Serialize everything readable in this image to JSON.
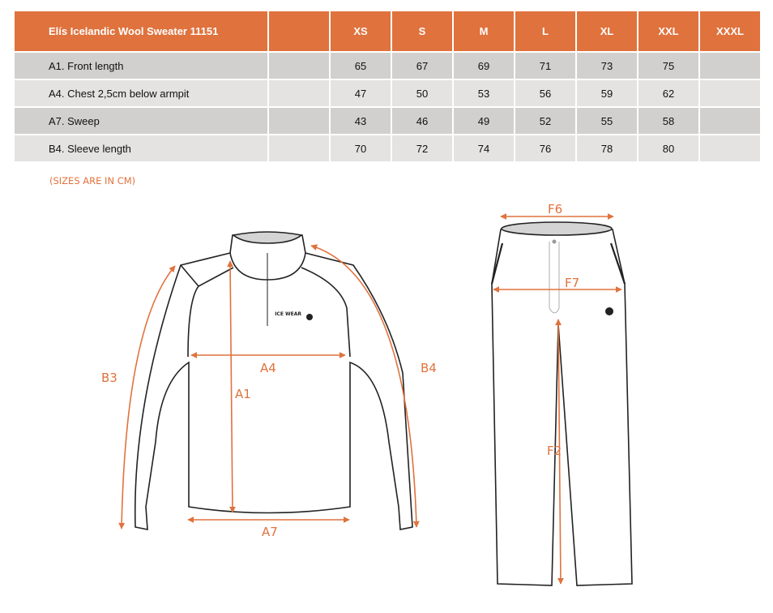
{
  "table": {
    "title": "Elís Icelandic Wool Sweater 11151",
    "sizes": [
      "XS",
      "S",
      "M",
      "L",
      "XL",
      "XXL",
      "XXXL"
    ],
    "rows": [
      {
        "label": "A1. Front length",
        "values": [
          "65",
          "67",
          "69",
          "71",
          "73",
          "75",
          ""
        ]
      },
      {
        "label": "A4. Chest 2,5cm below armpit",
        "values": [
          "47",
          "50",
          "53",
          "56",
          "59",
          "62",
          ""
        ]
      },
      {
        "label": "A7. Sweep",
        "values": [
          "43",
          "46",
          "49",
          "52",
          "55",
          "58",
          ""
        ]
      },
      {
        "label": "B4. Sleeve length",
        "values": [
          "70",
          "72",
          "74",
          "76",
          "78",
          "80",
          ""
        ]
      }
    ]
  },
  "note": "(SIZES ARE IN CM)",
  "diagram": {
    "accent_color": "#e0723d",
    "sweater_labels": {
      "a1": "A1",
      "a4": "A4",
      "a7": "A7",
      "b3": "B3",
      "b4": "B4",
      "logo": "ICE WEAR"
    },
    "pants_labels": {
      "f6": "F6",
      "f7": "F7",
      "f2": "F2"
    }
  }
}
